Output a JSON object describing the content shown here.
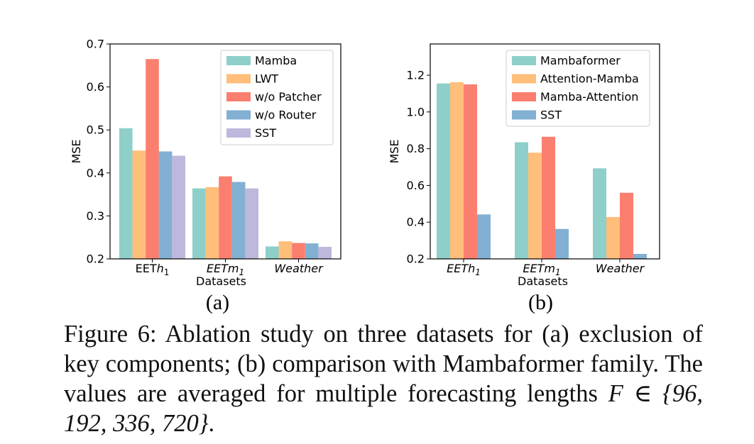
{
  "chart_data": [
    {
      "type": "bar",
      "panel_label": "(a)",
      "categories": [
        "EETh1",
        "EETm1",
        "Weather"
      ],
      "xlabel": "Datasets",
      "ylabel": "MSE",
      "ylim": [
        0.2,
        0.7
      ],
      "yticks": [
        "0.2",
        "0.3",
        "0.4",
        "0.5",
        "0.6",
        "0.7"
      ],
      "legend_position": "top-right",
      "grid": false,
      "series": [
        {
          "name": "Mamba",
          "color": "#8ecfc9",
          "values": [
            0.504,
            0.364,
            0.229
          ]
        },
        {
          "name": "LWT",
          "color": "#ffbe7a",
          "values": [
            0.452,
            0.367,
            0.241
          ]
        },
        {
          "name": "w/o Patcher",
          "color": "#fa7f6f",
          "values": [
            0.665,
            0.392,
            0.237
          ]
        },
        {
          "name": "w/o Router",
          "color": "#82b0d2",
          "values": [
            0.45,
            0.379,
            0.236
          ]
        },
        {
          "name": "SST",
          "color": "#beb8dc",
          "values": [
            0.44,
            0.364,
            0.228
          ]
        }
      ]
    },
    {
      "type": "bar",
      "panel_label": "(b)",
      "categories": [
        "EETh1",
        "EETm1",
        "Weather"
      ],
      "xlabel": "Datasets",
      "ylabel": "MSE",
      "ylim": [
        0.2,
        1.37
      ],
      "yticks": [
        "0.2",
        "0.4",
        "0.6",
        "0.8",
        "1.0",
        "1.2"
      ],
      "legend_position": "top-right",
      "grid": false,
      "series": [
        {
          "name": "Mambaformer",
          "color": "#8ecfc9",
          "values": [
            1.155,
            0.835,
            0.693
          ]
        },
        {
          "name": "Attention-Mamba",
          "color": "#ffbe7a",
          "values": [
            1.162,
            0.778,
            0.428
          ]
        },
        {
          "name": "Mamba-Attention",
          "color": "#fa7f6f",
          "values": [
            1.15,
            0.865,
            0.56
          ]
        },
        {
          "name": "SST",
          "color": "#82b0d2",
          "values": [
            0.442,
            0.363,
            0.227
          ]
        }
      ]
    }
  ],
  "caption": {
    "text_before": "Figure 6: Ablation study on three datasets for (a) exclusion of key components; (b) comparison with Mambaformer family. The values are averaged for multiple forecasting lengths ",
    "math": "F ∈ {96, 192, 336, 720}",
    "text_after": "."
  }
}
